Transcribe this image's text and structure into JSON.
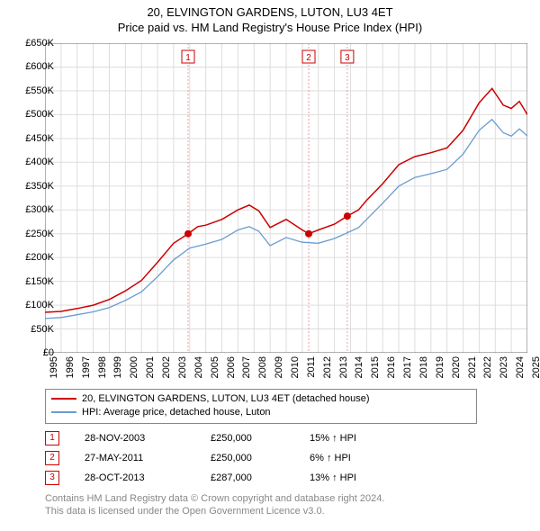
{
  "title_line1": "20, ELVINGTON GARDENS, LUTON, LU3 4ET",
  "title_line2": "Price paid vs. HM Land Registry's House Price Index (HPI)",
  "chart": {
    "type": "line",
    "background_color": "#ffffff",
    "grid_color": "#dddddd",
    "border_color": "#666666",
    "ylim": [
      0,
      650000
    ],
    "ytick_step": 50000,
    "y_labels": [
      "£0",
      "£50K",
      "£100K",
      "£150K",
      "£200K",
      "£250K",
      "£300K",
      "£350K",
      "£400K",
      "£450K",
      "£500K",
      "£550K",
      "£600K",
      "£650K"
    ],
    "xlim": [
      1995,
      2025
    ],
    "xtick_step": 1,
    "x_labels": [
      "1995",
      "1996",
      "1997",
      "1998",
      "1999",
      "2000",
      "2001",
      "2002",
      "2003",
      "2004",
      "2005",
      "2006",
      "2007",
      "2008",
      "2009",
      "2010",
      "2011",
      "2012",
      "2013",
      "2014",
      "2015",
      "2016",
      "2017",
      "2018",
      "2019",
      "2020",
      "2021",
      "2022",
      "2023",
      "2024",
      "2025"
    ],
    "tick_fontsize": 11,
    "series": [
      {
        "name": "20, ELVINGTON GARDENS, LUTON, LU3 4ET (detached house)",
        "color": "#cc0000",
        "line_width": 1.5,
        "points": [
          [
            1995,
            85000
          ],
          [
            1996,
            87000
          ],
          [
            1997,
            93000
          ],
          [
            1998,
            100000
          ],
          [
            1999,
            112000
          ],
          [
            2000,
            130000
          ],
          [
            2001,
            152000
          ],
          [
            2002,
            190000
          ],
          [
            2003,
            230000
          ],
          [
            2003.9,
            250000
          ],
          [
            2004.5,
            265000
          ],
          [
            2005,
            268000
          ],
          [
            2006,
            280000
          ],
          [
            2007,
            300000
          ],
          [
            2007.7,
            310000
          ],
          [
            2008.3,
            298000
          ],
          [
            2009,
            263000
          ],
          [
            2010,
            280000
          ],
          [
            2011,
            258000
          ],
          [
            2011.4,
            250000
          ],
          [
            2012,
            258000
          ],
          [
            2013,
            270000
          ],
          [
            2013.8,
            287000
          ],
          [
            2014.5,
            300000
          ],
          [
            2015,
            320000
          ],
          [
            2016,
            355000
          ],
          [
            2017,
            395000
          ],
          [
            2018,
            412000
          ],
          [
            2019,
            420000
          ],
          [
            2020,
            430000
          ],
          [
            2021,
            467000
          ],
          [
            2022,
            525000
          ],
          [
            2022.8,
            555000
          ],
          [
            2023.5,
            520000
          ],
          [
            2024,
            513000
          ],
          [
            2024.5,
            528000
          ],
          [
            2025,
            500000
          ]
        ]
      },
      {
        "name": "HPI: Average price, detached house, Luton",
        "color": "#6a9bd1",
        "line_width": 1.3,
        "points": [
          [
            1995,
            72000
          ],
          [
            1996,
            74000
          ],
          [
            1997,
            80000
          ],
          [
            1998,
            86000
          ],
          [
            1999,
            95000
          ],
          [
            2000,
            110000
          ],
          [
            2001,
            128000
          ],
          [
            2002,
            160000
          ],
          [
            2003,
            195000
          ],
          [
            2004,
            220000
          ],
          [
            2005,
            228000
          ],
          [
            2006,
            238000
          ],
          [
            2007,
            258000
          ],
          [
            2007.7,
            265000
          ],
          [
            2008.3,
            255000
          ],
          [
            2009,
            225000
          ],
          [
            2010,
            242000
          ],
          [
            2011,
            232000
          ],
          [
            2012,
            230000
          ],
          [
            2013,
            240000
          ],
          [
            2014,
            255000
          ],
          [
            2014.5,
            263000
          ],
          [
            2015,
            280000
          ],
          [
            2016,
            314000
          ],
          [
            2017,
            350000
          ],
          [
            2018,
            368000
          ],
          [
            2019,
            376000
          ],
          [
            2020,
            385000
          ],
          [
            2021,
            417000
          ],
          [
            2022,
            467000
          ],
          [
            2022.8,
            490000
          ],
          [
            2023.5,
            462000
          ],
          [
            2024,
            455000
          ],
          [
            2024.5,
            470000
          ],
          [
            2025,
            455000
          ]
        ]
      }
    ],
    "markers": [
      {
        "label": "1",
        "x": 2003.9,
        "y": 250000,
        "box_color": "#cc0000",
        "line_color": "#e6a0a0",
        "dot_color": "#cc0000"
      },
      {
        "label": "2",
        "x": 2011.4,
        "y": 250000,
        "box_color": "#cc0000",
        "line_color": "#e6a0a0",
        "dot_color": "#cc0000"
      },
      {
        "label": "3",
        "x": 2013.8,
        "y": 287000,
        "box_color": "#cc0000",
        "line_color": "#e6a0a0",
        "dot_color": "#cc0000"
      }
    ],
    "marker_box_size": 14,
    "marker_dot_radius": 4
  },
  "legend": {
    "border_color": "#888888",
    "rows": [
      {
        "color": "#cc0000",
        "label": "20, ELVINGTON GARDENS, LUTON, LU3 4ET (detached house)"
      },
      {
        "color": "#6a9bd1",
        "label": "HPI: Average price, detached house, Luton"
      }
    ]
  },
  "transactions": [
    {
      "num": "1",
      "date": "28-NOV-2003",
      "price": "£250,000",
      "hpi": "15% ↑ HPI"
    },
    {
      "num": "2",
      "date": "27-MAY-2011",
      "price": "£250,000",
      "hpi": "6% ↑ HPI"
    },
    {
      "num": "3",
      "date": "28-OCT-2013",
      "price": "£287,000",
      "hpi": "13% ↑ HPI"
    }
  ],
  "license_line1": "Contains HM Land Registry data © Crown copyright and database right 2024.",
  "license_line2": "This data is licensed under the Open Government Licence v3.0.",
  "license_color": "#888888"
}
